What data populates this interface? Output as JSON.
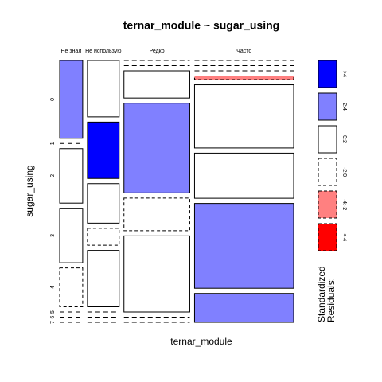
{
  "chart_data": {
    "type": "mosaic",
    "title": "ternar_module ~ sugar_using",
    "xlabel": "ternar_module",
    "ylabel": "sugar_using",
    "categories": [
      "Не знал",
      "Не использую",
      "Редко",
      "Часто"
    ],
    "row_labels": [
      "0",
      "1",
      "2",
      "3",
      "4",
      "5",
      "6",
      "7"
    ],
    "values": [
      [
        10,
        0,
        7,
        7,
        5,
        0,
        0,
        0
      ],
      [
        10,
        10,
        7,
        3,
        10,
        0,
        0,
        0
      ],
      [
        0,
        0,
        10,
        33,
        12,
        28,
        0,
        0
      ],
      [
        0,
        0,
        0,
        2,
        35,
        25,
        47,
        16
      ]
    ],
    "residual_class": [
      [
        1,
        3,
        2,
        2,
        3,
        3,
        3,
        3
      ],
      [
        2,
        0,
        2,
        3,
        2,
        3,
        3,
        3
      ],
      [
        3,
        3,
        2,
        1,
        3,
        2,
        3,
        3
      ],
      [
        3,
        3,
        3,
        4,
        2,
        2,
        1,
        1
      ]
    ],
    "legend_title": [
      "Standardized",
      "Residuals:"
    ],
    "legend_labels": [
      ">4",
      "2:4",
      "0:2",
      "-2:0",
      "-4:-2",
      "<-4"
    ],
    "legend_colors": [
      "#0000ff",
      "#8080ff",
      "#ffffff",
      "#ffffff",
      "#ff8080",
      "#ff0000"
    ],
    "legend_dashed": [
      false,
      false,
      false,
      true,
      true,
      true
    ]
  }
}
